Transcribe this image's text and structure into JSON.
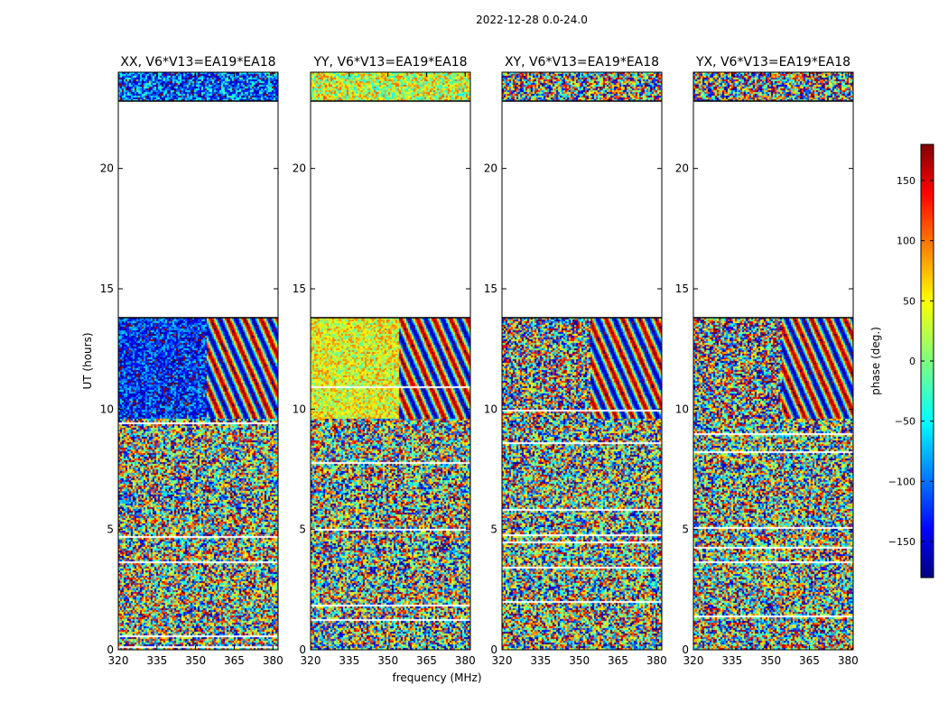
{
  "suptitle": "2022-12-28 0.0-24.0",
  "chart_data": {
    "type": "heatmap",
    "xlabel": "frequency (MHz)",
    "ylabel": "UT (hours)",
    "xlim": [
      320,
      382
    ],
    "ylim": [
      0,
      24
    ],
    "xticks": [
      320,
      335,
      350,
      365,
      380
    ],
    "yticks": [
      0,
      5,
      10,
      15,
      20
    ],
    "panels": [
      {
        "title": "XX, V6*V13=EA19*EA18",
        "polarization": "XX"
      },
      {
        "title": "YY, V6*V13=EA19*EA18",
        "polarization": "YY"
      },
      {
        "title": "XY, V6*V13=EA19*EA18",
        "polarization": "XY"
      },
      {
        "title": "YX, V6*V13=EA19*EA18",
        "polarization": "YX"
      }
    ],
    "data_ranges_hours": [
      [
        0,
        13.8
      ],
      [
        22.8,
        24
      ]
    ],
    "gap_hours": [
      13.8,
      22.8
    ],
    "colorbar": {
      "label": "phase (deg.)",
      "range": [
        -180,
        180
      ],
      "ticks": [
        150,
        100,
        50,
        0,
        -50,
        -100,
        -150
      ],
      "tick_labels": [
        "150",
        "100",
        "50",
        "0",
        "−50",
        "−100",
        "−150"
      ],
      "colormap": "jet"
    },
    "grid": false
  }
}
